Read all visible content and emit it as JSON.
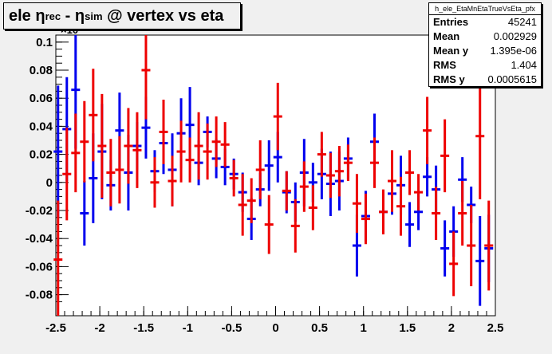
{
  "title": {
    "prefix": "ele ",
    "eta1": "η",
    "sub1": "rec",
    "mid": " - ",
    "eta2": "η",
    "sub2": "sim",
    "suffix": " @ vertex vs eta"
  },
  "stats": {
    "name": "h_ele_EtaMnEtaTrueVsEta_pfx",
    "rows": [
      {
        "label": "Entries",
        "value": "45241"
      },
      {
        "label": "Mean",
        "value": "0.002929"
      },
      {
        "label": "Mean y",
        "value": "1.395e-06"
      },
      {
        "label": "RMS",
        "value": "1.404"
      },
      {
        "label": "RMS y",
        "value": "0.0005615"
      }
    ]
  },
  "chart_data": {
    "type": "scatter",
    "exponent_label": "×10",
    "xlim": [
      -2.5,
      2.5
    ],
    "ylim": [
      -0.095,
      0.105
    ],
    "x_ticks": [
      -2.5,
      -2,
      -1.5,
      -1,
      -0.5,
      0,
      0.5,
      1,
      1.5,
      2,
      2.5
    ],
    "x_tick_labels": [
      "-2.5",
      "-2",
      "-1.5",
      "-1",
      "-0.5",
      "0",
      "0.5",
      "1",
      "1.5",
      "2",
      "2.5"
    ],
    "y_ticks": [
      -0.08,
      -0.06,
      -0.04,
      -0.02,
      0,
      0.02,
      0.04,
      0.06,
      0.08,
      0.1
    ],
    "y_tick_labels": [
      "-0.08",
      "-0.06",
      "-0.04",
      "-0.02",
      "0",
      "0.02",
      "0.04",
      "0.06",
      "0.08",
      "0.1"
    ],
    "colors": {
      "blue": "#0000ee",
      "red": "#ee0000"
    },
    "series": [
      {
        "color": "blue",
        "points": [
          [
            -2.475,
            0.022,
            0.047
          ],
          [
            -2.375,
            0.038,
            0.037
          ],
          [
            -2.275,
            0.066,
            0.042
          ],
          [
            -2.175,
            -0.022,
            0.023
          ],
          [
            -2.075,
            0.003,
            0.032
          ],
          [
            -1.975,
            0.022,
            0.034
          ],
          [
            -1.875,
            -0.002,
            0.018
          ],
          [
            -1.775,
            0.037,
            0.027
          ],
          [
            -1.675,
            0.007,
            0.027
          ],
          [
            -1.575,
            0.026,
            0.017
          ],
          [
            -1.475,
            0.039,
            0.022
          ],
          [
            -1.375,
            0.008,
            0.015
          ],
          [
            -1.275,
            0.028,
            0.022
          ],
          [
            -1.175,
            0.009,
            0.026
          ],
          [
            -1.075,
            0.035,
            0.025
          ],
          [
            -0.975,
            0.041,
            0.027
          ],
          [
            -0.875,
            0.014,
            0.016
          ],
          [
            -0.775,
            0.036,
            0.011
          ],
          [
            -0.675,
            0.017,
            0.014
          ],
          [
            -0.575,
            0.011,
            0.013
          ],
          [
            -0.475,
            0.006,
            0.011
          ],
          [
            -0.375,
            -0.007,
            0.014
          ],
          [
            -0.275,
            -0.026,
            0.015
          ],
          [
            -0.175,
            -0.005,
            0.012
          ],
          [
            -0.075,
            0.012,
            0.018
          ],
          [
            0.025,
            0.018,
            0.018
          ],
          [
            0.125,
            -0.007,
            0.015
          ],
          [
            0.225,
            -0.014,
            0.014
          ],
          [
            0.325,
            0.007,
            0.024
          ],
          [
            0.425,
            0.0,
            0.014
          ],
          [
            0.525,
            0.006,
            0.018
          ],
          [
            0.625,
            -0.001,
            0.023
          ],
          [
            0.725,
            0.001,
            0.021
          ],
          [
            0.825,
            0.017,
            0.015
          ],
          [
            0.925,
            -0.045,
            0.022
          ],
          [
            1.025,
            -0.024,
            0.018
          ],
          [
            1.125,
            0.029,
            0.02
          ],
          [
            1.225,
            -0.021,
            0.014
          ],
          [
            1.325,
            -0.008,
            0.015
          ],
          [
            1.425,
            -0.002,
            0.021
          ],
          [
            1.525,
            -0.03,
            0.016
          ],
          [
            1.625,
            -0.021,
            0.013
          ],
          [
            1.725,
            0.004,
            0.014
          ],
          [
            1.825,
            -0.005,
            0.017
          ],
          [
            1.925,
            -0.047,
            0.02
          ],
          [
            2.025,
            -0.035,
            0.018
          ],
          [
            2.125,
            0.002,
            0.016
          ],
          [
            2.225,
            -0.016,
            0.013
          ],
          [
            2.325,
            -0.056,
            0.032
          ],
          [
            2.425,
            -0.047,
            0.024
          ]
        ]
      },
      {
        "color": "red",
        "points": [
          [
            -2.475,
            -0.055,
            0.042
          ],
          [
            -2.375,
            0.006,
            0.033
          ],
          [
            -2.275,
            0.021,
            0.028
          ],
          [
            -2.175,
            0.029,
            0.029
          ],
          [
            -2.075,
            0.048,
            0.033
          ],
          [
            -1.975,
            0.026,
            0.037
          ],
          [
            -1.875,
            0.007,
            0.024
          ],
          [
            -1.775,
            0.009,
            0.024
          ],
          [
            -1.675,
            0.026,
            0.027
          ],
          [
            -1.575,
            0.023,
            0.027
          ],
          [
            -1.475,
            0.08,
            0.035
          ],
          [
            -1.375,
            0.0,
            0.018
          ],
          [
            -1.275,
            0.036,
            0.023
          ],
          [
            -1.175,
            0.001,
            0.018
          ],
          [
            -1.075,
            0.022,
            0.022
          ],
          [
            -0.975,
            0.016,
            0.016
          ],
          [
            -0.875,
            0.026,
            0.024
          ],
          [
            -0.775,
            0.022,
            0.02
          ],
          [
            -0.675,
            0.029,
            0.018
          ],
          [
            -0.575,
            0.027,
            0.016
          ],
          [
            -0.475,
            0.003,
            0.013
          ],
          [
            -0.375,
            -0.016,
            0.022
          ],
          [
            -0.275,
            -0.013,
            0.016
          ],
          [
            -0.175,
            0.009,
            0.021
          ],
          [
            -0.075,
            -0.03,
            0.021
          ],
          [
            0.025,
            0.047,
            0.024
          ],
          [
            0.125,
            -0.006,
            0.014
          ],
          [
            0.225,
            -0.031,
            0.019
          ],
          [
            0.325,
            -0.003,
            0.018
          ],
          [
            0.425,
            -0.018,
            0.016
          ],
          [
            0.525,
            0.02,
            0.016
          ],
          [
            0.625,
            0.005,
            0.016
          ],
          [
            0.725,
            0.008,
            0.018
          ],
          [
            0.825,
            0.014,
            0.013
          ],
          [
            0.925,
            -0.015,
            0.021
          ],
          [
            1.025,
            -0.026,
            0.018
          ],
          [
            1.125,
            0.014,
            0.018
          ],
          [
            1.225,
            -0.021,
            0.016
          ],
          [
            1.325,
            0.001,
            0.022
          ],
          [
            1.425,
            -0.017,
            0.021
          ],
          [
            1.525,
            0.007,
            0.016
          ],
          [
            1.625,
            -0.007,
            0.013
          ],
          [
            1.725,
            0.037,
            0.024
          ],
          [
            1.825,
            -0.022,
            0.019
          ],
          [
            1.925,
            0.019,
            0.026
          ],
          [
            2.025,
            -0.058,
            0.023
          ],
          [
            2.125,
            -0.022,
            0.023
          ],
          [
            2.225,
            -0.045,
            0.029
          ],
          [
            2.325,
            0.033,
            0.045
          ],
          [
            2.425,
            -0.045,
            0.032
          ]
        ]
      }
    ]
  }
}
